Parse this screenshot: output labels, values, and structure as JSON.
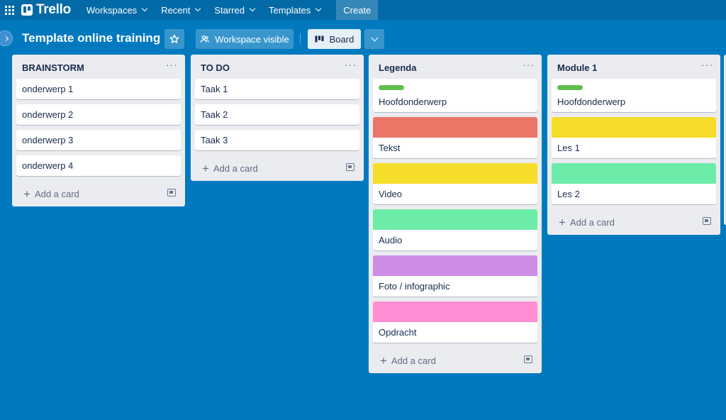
{
  "topbar": {
    "logo": "Trello",
    "nav": [
      {
        "label": "Workspaces"
      },
      {
        "label": "Recent"
      },
      {
        "label": "Starred"
      },
      {
        "label": "Templates"
      }
    ],
    "create_label": "Create"
  },
  "board": {
    "title": "Template online training",
    "visibility_label": "Workspace visible",
    "view_label": "Board"
  },
  "lists": [
    {
      "title": "BRAINSTORM",
      "cards": [
        {
          "text": "onderwerp 1"
        },
        {
          "text": "onderwerp 2"
        },
        {
          "text": "onderwerp 3"
        },
        {
          "text": "onderwerp 4"
        }
      ],
      "add_label": "Add a card"
    },
    {
      "title": "TO DO",
      "cards": [
        {
          "text": "Taak 1"
        },
        {
          "text": "Taak 2"
        },
        {
          "text": "Taak 3"
        }
      ],
      "add_label": "Add a card"
    },
    {
      "title": "Legenda",
      "cards": [
        {
          "text": "Hoofdonderwerp",
          "label_color": "#61bd4f"
        },
        {
          "text": "Tekst",
          "cover_color": "#eb7667"
        },
        {
          "text": "Video",
          "cover_color": "#f5dd29"
        },
        {
          "text": "Audio",
          "cover_color": "#6deca9"
        },
        {
          "text": "Foto / infographic",
          "cover_color": "#cd8de5"
        },
        {
          "text": "Opdracht",
          "cover_color": "#ff8ed4"
        }
      ],
      "add_label": "Add a card"
    },
    {
      "title": "Module 1",
      "cards": [
        {
          "text": "Hoofdonderwerp",
          "label_color": "#61bd4f"
        },
        {
          "text": "Les 1",
          "cover_color": "#f5dd29"
        },
        {
          "text": "Les 2",
          "cover_color": "#6deca9"
        }
      ],
      "add_label": "Add a card"
    }
  ],
  "icons": {
    "apps": "apps-grid-icon",
    "star": "star-icon",
    "visibility": "workspace-icon",
    "board": "board-icon",
    "more": "chevron-down-icon",
    "list_menu": "more-horizontal-icon",
    "template": "card-template-icon"
  }
}
